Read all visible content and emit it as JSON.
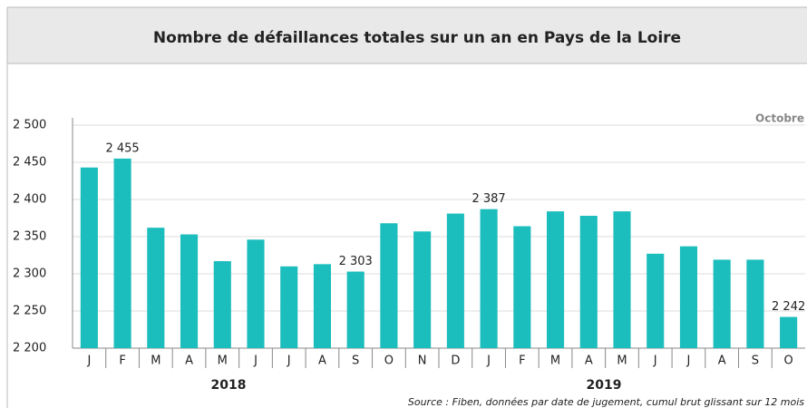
{
  "chart_data": {
    "type": "bar",
    "title": "Nombre de défaillances totales sur un an en Pays de la Loire",
    "period_label": "Octobre",
    "categories": [
      "J",
      "F",
      "M",
      "A",
      "M",
      "J",
      "J",
      "A",
      "S",
      "O",
      "N",
      "D",
      "J",
      "F",
      "M",
      "A",
      "M",
      "J",
      "J",
      "A",
      "S",
      "O"
    ],
    "years": [
      "2018",
      "2019"
    ],
    "values": [
      2443,
      2455,
      2362,
      2353,
      2317,
      2346,
      2310,
      2313,
      2303,
      2368,
      2357,
      2381,
      2387,
      2364,
      2384,
      2378,
      2384,
      2327,
      2337,
      2319,
      2319,
      2242
    ],
    "value_labels": [
      null,
      "2 455",
      null,
      null,
      null,
      null,
      null,
      null,
      "2 303",
      null,
      null,
      null,
      "2 387",
      null,
      null,
      null,
      null,
      null,
      null,
      null,
      null,
      "2 242"
    ],
    "color": "#1cbdbd",
    "ylim": [
      2200,
      2500
    ],
    "yticks": [
      {
        "value": 2200,
        "label": "2 200"
      },
      {
        "value": 2250,
        "label": "2 250"
      },
      {
        "value": 2300,
        "label": "2 300"
      },
      {
        "value": 2350,
        "label": "2 350"
      },
      {
        "value": 2400,
        "label": "2 400"
      },
      {
        "value": 2450,
        "label": "2 450"
      },
      {
        "value": 2500,
        "label": "2 500"
      }
    ],
    "grid": true,
    "source": "Source : Fiben, données par date de jugement, cumul brut glissant sur 12 mois"
  }
}
